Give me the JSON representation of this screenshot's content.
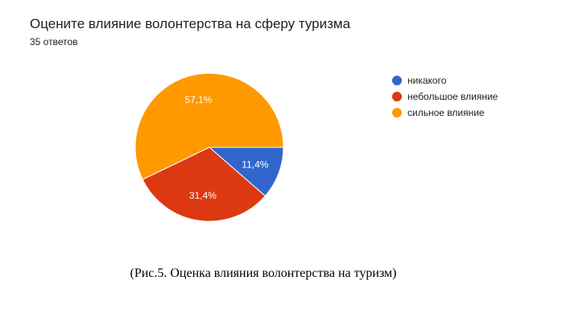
{
  "chart_data": {
    "type": "pie",
    "title": "Оцените влияние волонтерства на сферу туризма",
    "subtitle": "35 ответов",
    "categories": [
      "никакого",
      "небольшое влияние",
      "сильное влияние"
    ],
    "values": [
      11.4,
      31.4,
      57.1
    ],
    "labels": [
      "11,4%",
      "31,4%",
      "57,1%"
    ],
    "colors": [
      "#3366cc",
      "#dc3912",
      "#ff9900"
    ],
    "legend": "right"
  },
  "caption": "(Рис.5. Оценка влияния волонтерства на туризм)"
}
